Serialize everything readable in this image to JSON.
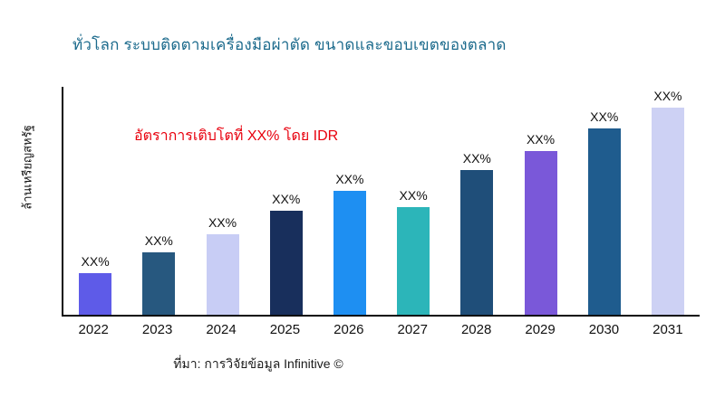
{
  "chart_data": {
    "type": "bar",
    "title": "ทั่วโลก ระบบติดตามเครื่องมือผ่าตัด ขนาดและขอบเขตของตลาด",
    "title_color": "#1b6a8c",
    "ylabel": "ล้านเหรียญสหรัฐ",
    "xlabel": "",
    "annotation": "อัตราการเติบโตที่ XX% โดย IDR",
    "annotation_color": "#e8000d",
    "source": "ที่มา: การวิจัยข้อมูล Infinitive ©",
    "categories": [
      "2022",
      "2023",
      "2024",
      "2025",
      "2026",
      "2027",
      "2028",
      "2029",
      "2030",
      "2031"
    ],
    "values": [
      20,
      30,
      39,
      50,
      60,
      52,
      70,
      79,
      90,
      100
    ],
    "bar_labels": [
      "XX%",
      "XX%",
      "XX%",
      "XX%",
      "XX%",
      "XX%",
      "XX%",
      "XX%",
      "XX%",
      "XX%"
    ],
    "colors": [
      "#5e5be8",
      "#27587f",
      "#c8cdf5",
      "#182f5c",
      "#1e8ff2",
      "#2cb5b9",
      "#1f4e79",
      "#7a58d9",
      "#1f5c8e",
      "#cdd1f4"
    ],
    "ylim": [
      0,
      110
    ],
    "grid": false,
    "legend": false
  }
}
